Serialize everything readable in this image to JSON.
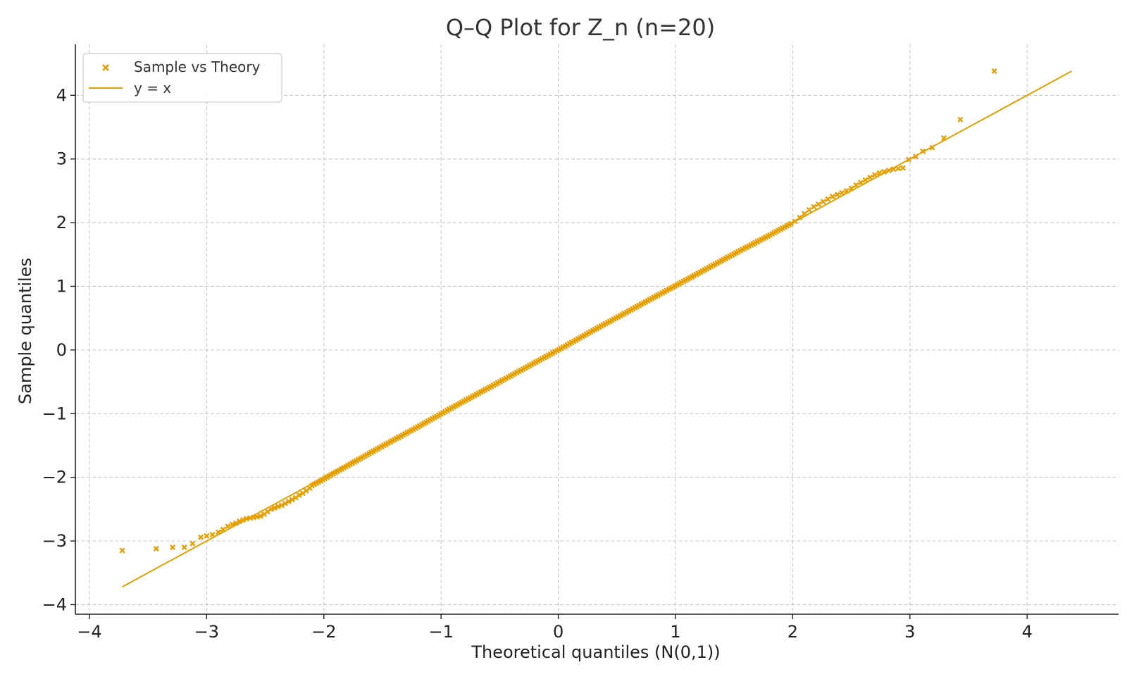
{
  "chart_data": {
    "type": "scatter",
    "title": "Q–Q Plot for Z_n (n=20)",
    "xlabel": "Theoretical quantiles (N(0,1))",
    "ylabel": "Sample quantiles",
    "xlim": [
      -4.12,
      4.78
    ],
    "ylim": [
      -4.15,
      4.8
    ],
    "xticks": [
      -4,
      -3,
      -2,
      -1,
      0,
      1,
      2,
      3,
      4
    ],
    "yticks": [
      -4,
      -3,
      -2,
      -1,
      0,
      1,
      2,
      3,
      4
    ],
    "xtick_labels": [
      "−4",
      "−3",
      "−2",
      "−1",
      "0",
      "1",
      "2",
      "3",
      "4"
    ],
    "ytick_labels": [
      "−4",
      "−3",
      "−2",
      "−1",
      "0",
      "1",
      "2",
      "3",
      "4"
    ],
    "grid": true,
    "legend_position": "top-left",
    "series": [
      {
        "name": "Sample vs Theory",
        "kind": "scatter",
        "marker": "x",
        "color": "#E69F00",
        "points": [
          [
            -3.72,
            -3.15
          ],
          [
            -3.43,
            -3.12
          ],
          [
            -3.29,
            -3.1
          ],
          [
            -3.19,
            -3.1
          ],
          [
            -3.12,
            -3.04
          ],
          [
            -3.05,
            -2.94
          ],
          [
            -3.0,
            -2.92
          ],
          [
            -2.95,
            -2.9
          ],
          [
            -2.9,
            -2.86
          ],
          [
            -2.86,
            -2.82
          ],
          [
            -2.82,
            -2.77
          ],
          [
            -2.78,
            -2.74
          ],
          [
            -2.75,
            -2.72
          ],
          [
            -2.72,
            -2.69
          ],
          [
            -2.69,
            -2.67
          ],
          [
            -2.66,
            -2.65
          ],
          [
            -2.63,
            -2.64
          ],
          [
            -2.6,
            -2.63
          ],
          [
            -2.57,
            -2.62
          ],
          [
            -2.54,
            -2.61
          ],
          [
            -2.51,
            -2.58
          ],
          [
            -2.48,
            -2.54
          ],
          [
            -2.45,
            -2.5
          ],
          [
            -2.42,
            -2.48
          ],
          [
            -2.39,
            -2.46
          ],
          [
            -2.36,
            -2.44
          ],
          [
            -2.33,
            -2.41
          ],
          [
            -2.3,
            -2.38
          ],
          [
            -2.27,
            -2.35
          ],
          [
            -2.24,
            -2.32
          ],
          [
            -2.21,
            -2.28
          ],
          [
            -2.18,
            -2.25
          ],
          [
            -2.15,
            -2.21
          ],
          [
            -2.12,
            -2.17
          ]
        ],
        "dense_band": {
          "x_range": [
            -2.1,
            2.0
          ],
          "deviation_from_y_equals_x": [
            [
              -2.1,
              -0.03
            ],
            [
              -1.8,
              -0.02
            ],
            [
              -1.5,
              -0.01
            ],
            [
              -1.2,
              -0.01
            ],
            [
              -0.9,
              0.0
            ],
            [
              -0.6,
              0.0
            ],
            [
              -0.3,
              0.0
            ],
            [
              0.0,
              0.0
            ],
            [
              0.3,
              0.01
            ],
            [
              0.6,
              0.01
            ],
            [
              0.9,
              0.01
            ],
            [
              1.2,
              0.01
            ],
            [
              1.5,
              0.01
            ],
            [
              1.8,
              0.0
            ],
            [
              2.0,
              0.0
            ]
          ]
        },
        "upper_tail": [
          [
            2.02,
            2.02
          ],
          [
            2.06,
            2.08
          ],
          [
            2.1,
            2.14
          ],
          [
            2.14,
            2.2
          ],
          [
            2.18,
            2.25
          ],
          [
            2.22,
            2.29
          ],
          [
            2.26,
            2.33
          ],
          [
            2.3,
            2.37
          ],
          [
            2.34,
            2.41
          ],
          [
            2.38,
            2.44
          ],
          [
            2.42,
            2.47
          ],
          [
            2.46,
            2.5
          ],
          [
            2.5,
            2.54
          ],
          [
            2.54,
            2.59
          ],
          [
            2.58,
            2.63
          ],
          [
            2.62,
            2.67
          ],
          [
            2.66,
            2.71
          ],
          [
            2.7,
            2.75
          ],
          [
            2.74,
            2.78
          ],
          [
            2.78,
            2.8
          ],
          [
            2.82,
            2.82
          ],
          [
            2.86,
            2.84
          ],
          [
            2.9,
            2.85
          ],
          [
            2.94,
            2.86
          ],
          [
            2.99,
            2.99
          ],
          [
            3.05,
            3.04
          ],
          [
            3.11,
            3.12
          ],
          [
            3.19,
            3.18
          ],
          [
            3.29,
            3.33
          ],
          [
            3.43,
            3.62
          ],
          [
            3.72,
            4.38
          ]
        ]
      },
      {
        "name": "y = x",
        "kind": "line",
        "color": "#E69F00",
        "points": [
          [
            -3.72,
            -3.72
          ],
          [
            4.38,
            4.38
          ]
        ]
      }
    ]
  }
}
